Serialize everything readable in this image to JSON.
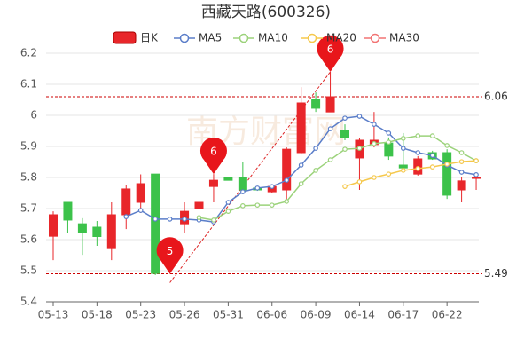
{
  "chart_data": {
    "type": "candlestick",
    "title": "西藏天路(600326)",
    "watermark": "南方财富网",
    "categories": [
      "05-13",
      null,
      null,
      "05-18",
      null,
      null,
      "05-23",
      null,
      null,
      "05-26",
      null,
      null,
      "05-31",
      null,
      null,
      "06-06",
      null,
      null,
      "06-09",
      null,
      null,
      "06-14",
      null,
      null,
      "06-17",
      null,
      null,
      "06-22",
      null,
      null
    ],
    "candles": {
      "name": "日K",
      "up_color": "#e8262a",
      "down_color": "#3cc24a",
      "open": [
        5.611,
        5.72,
        5.651,
        5.64,
        5.571,
        5.68,
        5.72,
        5.811,
        5.514,
        5.651,
        5.7,
        5.771,
        5.8,
        5.8,
        5.766,
        5.754,
        5.76,
        5.88,
        6.051,
        6.011,
        5.951,
        5.863,
        5.906,
        5.911,
        5.84,
        5.811,
        5.88,
        5.88,
        5.76,
        5.797
      ],
      "close": [
        5.68,
        5.663,
        5.623,
        5.61,
        5.68,
        5.763,
        5.78,
        5.491,
        5.6,
        5.691,
        5.72,
        5.791,
        5.791,
        5.76,
        5.76,
        5.771,
        5.891,
        6.04,
        6.023,
        6.06,
        5.929,
        5.92,
        5.92,
        5.869,
        5.831,
        5.86,
        5.86,
        5.743,
        5.789,
        5.8
      ],
      "high": [
        5.691,
        5.72,
        5.669,
        5.66,
        5.72,
        5.777,
        5.81,
        5.811,
        5.606,
        5.72,
        5.737,
        5.811,
        5.8,
        5.851,
        5.77,
        5.777,
        5.897,
        6.091,
        6.074,
        6.14,
        5.971,
        5.926,
        6.011,
        5.929,
        5.943,
        5.869,
        5.886,
        5.891,
        5.8,
        5.8
      ],
      "low": [
        5.534,
        5.62,
        5.551,
        5.58,
        5.534,
        5.634,
        5.686,
        5.486,
        5.49,
        5.62,
        5.657,
        5.72,
        5.79,
        5.749,
        5.757,
        5.749,
        5.72,
        5.874,
        6.011,
        6.011,
        5.92,
        5.76,
        5.897,
        5.857,
        5.823,
        5.806,
        5.857,
        5.731,
        5.72,
        5.76
      ]
    },
    "series": [
      {
        "name": "MA5",
        "color": "#5b7ec9",
        "values": [
          null,
          null,
          null,
          null,
          null,
          5.674,
          5.694,
          5.666,
          5.666,
          5.666,
          5.663,
          5.657,
          5.72,
          5.754,
          5.766,
          5.771,
          5.791,
          5.84,
          5.894,
          5.957,
          5.991,
          5.997,
          5.971,
          5.943,
          5.894,
          5.88,
          5.871,
          5.84,
          5.817,
          5.809
        ]
      },
      {
        "name": "MA10",
        "color": "#9bd27a",
        "values": [
          null,
          null,
          null,
          null,
          null,
          null,
          null,
          null,
          null,
          null,
          5.671,
          5.663,
          5.691,
          5.709,
          5.711,
          5.711,
          5.723,
          5.78,
          5.823,
          5.857,
          5.891,
          5.894,
          5.909,
          5.914,
          5.926,
          5.934,
          5.934,
          5.903,
          5.88,
          5.854
        ]
      },
      {
        "name": "MA20",
        "color": "#f5c84c",
        "values": [
          null,
          null,
          null,
          null,
          null,
          null,
          null,
          null,
          null,
          null,
          null,
          null,
          null,
          null,
          null,
          null,
          null,
          null,
          null,
          null,
          5.771,
          5.786,
          5.8,
          5.811,
          5.823,
          5.829,
          5.834,
          5.843,
          5.851,
          5.854
        ]
      },
      {
        "name": "MA30",
        "color": "#f27373",
        "values": [
          null,
          null,
          null,
          null,
          null,
          null,
          null,
          null,
          null,
          null,
          null,
          null,
          null,
          null,
          null,
          null,
          null,
          null,
          null,
          null,
          null,
          null,
          null,
          null,
          null,
          null,
          null,
          null,
          null,
          null
        ]
      }
    ],
    "markers": [
      {
        "index": 19,
        "value": 6.14,
        "label": "6"
      },
      {
        "index": 11,
        "value": 5.811,
        "label": "6"
      },
      {
        "index": 8,
        "value": 5.49,
        "label": "5"
      }
    ],
    "hlines": [
      6.06,
      5.49
    ],
    "ylim": [
      5.4,
      6.2
    ],
    "yticks": [
      5.4,
      5.5,
      5.6,
      5.7,
      5.8,
      5.9,
      6,
      6.1,
      6.2
    ],
    "grid": true
  }
}
